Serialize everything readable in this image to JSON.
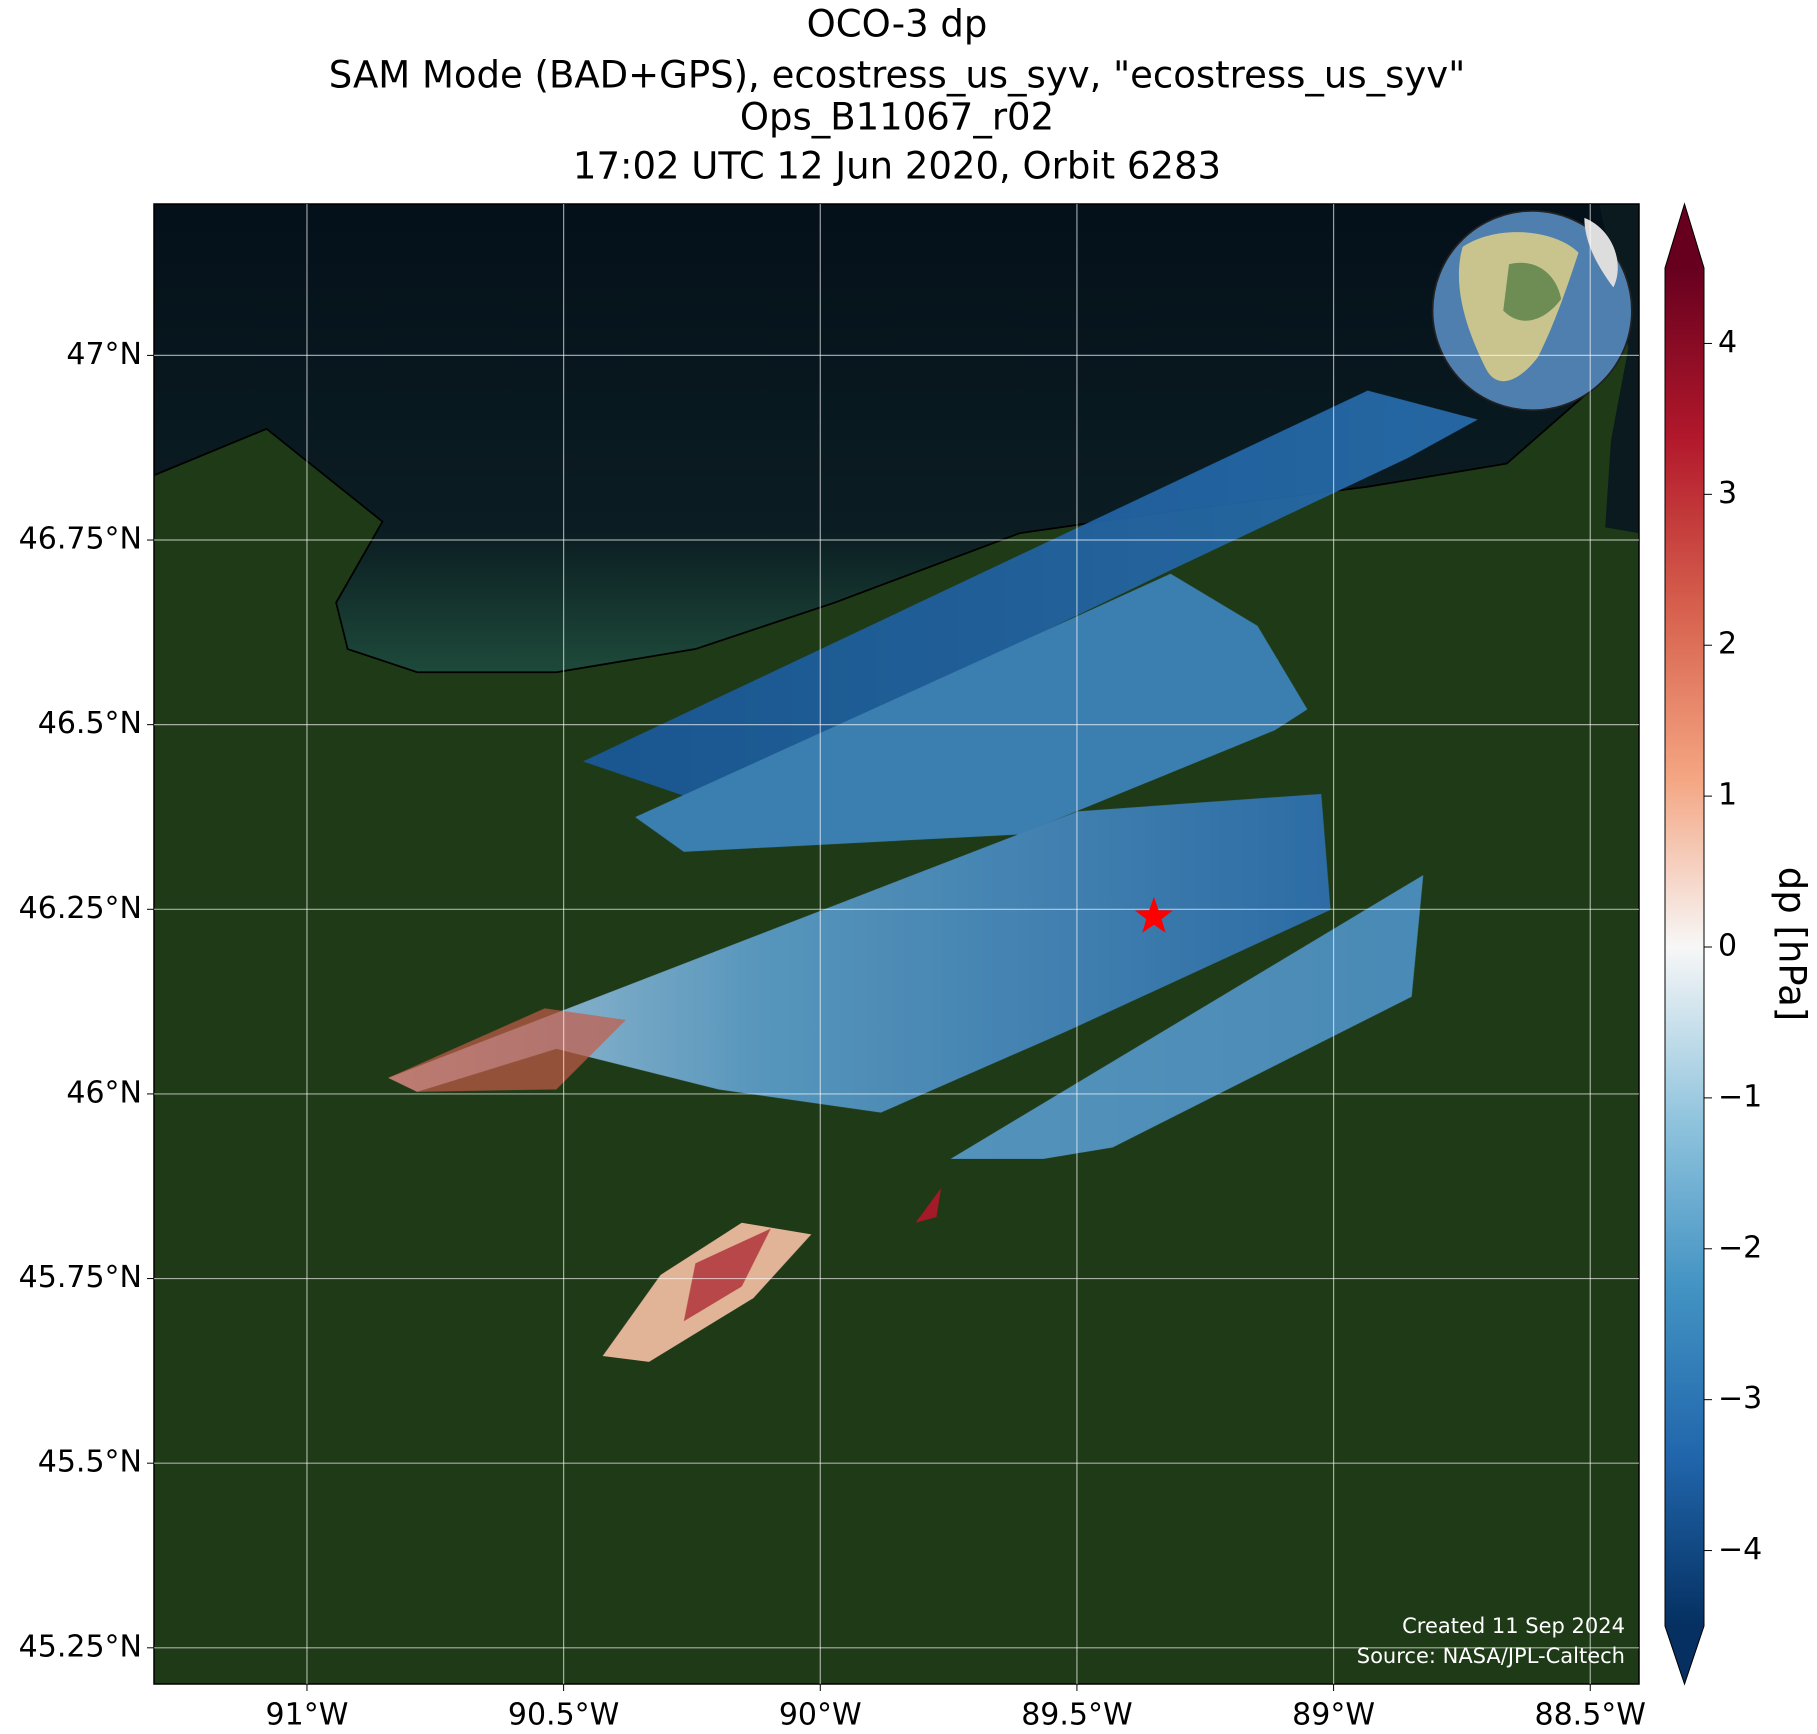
{
  "title_lines": [
    "OCO-3 dp",
    "SAM Mode (BAD+GPS), ecostress_us_syv, \"ecostress_us_syv\"",
    "Ops_B11067_r02",
    "17:02 UTC 12 Jun 2020, Orbit 6283"
  ],
  "map": {
    "xlim": [
      -91.298,
      -88.405
    ],
    "ylim": [
      45.201,
      47.205
    ],
    "xticks": [
      {
        "value": -91,
        "label": "91°W"
      },
      {
        "value": -90.5,
        "label": "90.5°W"
      },
      {
        "value": -90,
        "label": "90°W"
      },
      {
        "value": -89.5,
        "label": "89.5°W"
      },
      {
        "value": -89,
        "label": "89°W"
      },
      {
        "value": -88.5,
        "label": "88.5°W"
      }
    ],
    "yticks": [
      {
        "value": 47,
        "label": "47°N"
      },
      {
        "value": 46.75,
        "label": "46.75°N"
      },
      {
        "value": 46.5,
        "label": "46.5°N"
      },
      {
        "value": 46.25,
        "label": "46.25°N"
      },
      {
        "value": 46,
        "label": "46°N"
      },
      {
        "value": 45.75,
        "label": "45.75°N"
      },
      {
        "value": 45.5,
        "label": "45.5°N"
      },
      {
        "value": 45.25,
        "label": "45.25°N"
      }
    ],
    "grid": true,
    "site": {
      "lon": -89.35,
      "lat": 46.24,
      "color": "#ff0000"
    }
  },
  "colorbar": {
    "label": "dp [hPa]",
    "clim": [
      -4.5,
      4.5
    ],
    "ticks": [
      {
        "value": -4,
        "label": "−4"
      },
      {
        "value": -3,
        "label": "−3"
      },
      {
        "value": -2,
        "label": "−2"
      },
      {
        "value": -1,
        "label": "−1"
      },
      0,
      1,
      2,
      3,
      4
    ]
  },
  "footer": {
    "created": "Created 11 Sep 2024",
    "source": "Source: NASA/JPL-Caltech"
  }
}
